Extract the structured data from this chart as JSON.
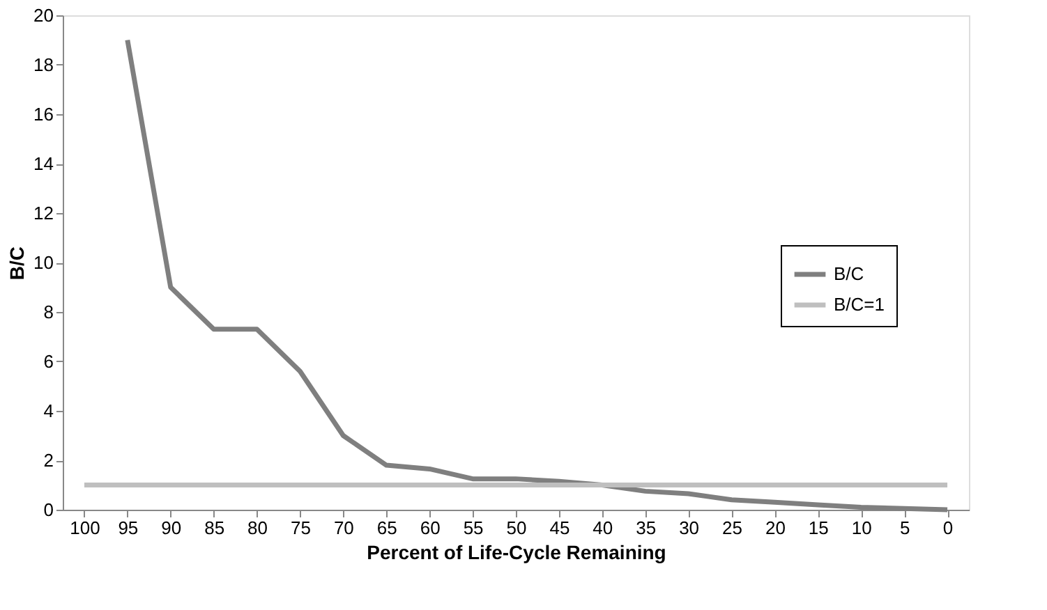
{
  "chart_data": {
    "type": "line",
    "xlabel": "Percent of Life-Cycle Remaining",
    "ylabel": "B/C",
    "categories": [
      "100",
      "95",
      "90",
      "85",
      "80",
      "75",
      "70",
      "65",
      "60",
      "55",
      "50",
      "45",
      "40",
      "35",
      "30",
      "25",
      "20",
      "15",
      "10",
      "5",
      "0"
    ],
    "series": [
      {
        "name": "B/C",
        "color": "#7f7f7f",
        "values": [
          null,
          19,
          9,
          7.3,
          7.3,
          5.6,
          3,
          1.8,
          1.65,
          1.25,
          1.25,
          1.15,
          1.0,
          0.75,
          0.65,
          0.4,
          0.3,
          0.2,
          0.1,
          0.05,
          0
        ]
      },
      {
        "name": "B/C=1",
        "color": "#bfbfbf",
        "values": [
          1,
          1,
          1,
          1,
          1,
          1,
          1,
          1,
          1,
          1,
          1,
          1,
          1,
          1,
          1,
          1,
          1,
          1,
          1,
          1,
          1
        ]
      }
    ],
    "ylim": [
      0,
      20
    ],
    "yticks": [
      0,
      2,
      4,
      6,
      8,
      10,
      12,
      14,
      16,
      18,
      20
    ],
    "grid": false,
    "legend": "right",
    "marker": "none",
    "line_style": "solid"
  }
}
